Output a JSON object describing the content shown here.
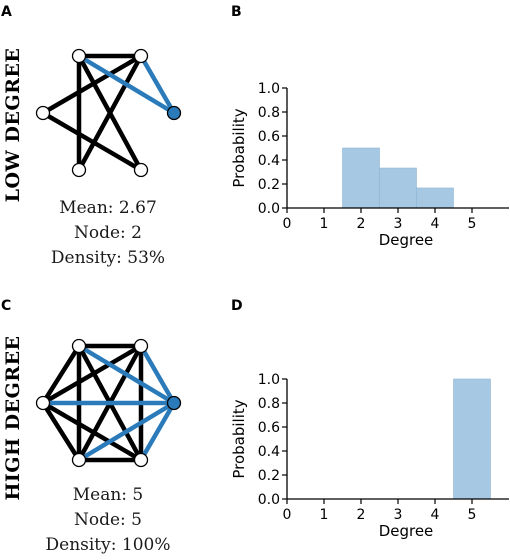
{
  "colors": {
    "edge": "#000000",
    "highlight": "#2b7bba",
    "bar": "#a6c8e3",
    "bar_edge": "#8fb6d6",
    "node_fill": "#ffffff",
    "node_highlight": "#2b7bba",
    "node_text": "#2b7bba"
  },
  "panels": [
    {
      "letter": "A",
      "side_label": "LOW DEGREE",
      "stats": {
        "mean_label": "Mean:",
        "mean_value": "2.67",
        "node_label": "Node:",
        "node_value": "2",
        "density_label": "Density:",
        "density_value": "53%"
      }
    },
    {
      "letter": "B"
    },
    {
      "letter": "C",
      "side_label": "HIGH DEGREE",
      "stats": {
        "mean_label": "Mean:",
        "mean_value": "5",
        "node_label": "Node:",
        "node_value": "5",
        "density_label": "Density:",
        "density_value": "100%"
      }
    },
    {
      "letter": "D"
    }
  ],
  "chart_data": [
    {
      "type": "bar",
      "xlabel": "Degree",
      "ylabel": "Probability",
      "xlim": [
        0,
        6
      ],
      "ylim": [
        0,
        1.0
      ],
      "xticks": [
        "0",
        "1",
        "2",
        "3",
        "4",
        "5"
      ],
      "yticks": [
        "0.0",
        "0.2",
        "0.4",
        "0.6",
        "0.8",
        "1.0"
      ],
      "categories": [
        2,
        3,
        4
      ],
      "values": [
        0.5,
        0.333,
        0.167
      ]
    },
    {
      "type": "bar",
      "xlabel": "Degree",
      "ylabel": "Probability",
      "xlim": [
        0,
        6
      ],
      "ylim": [
        0,
        1.0
      ],
      "xticks": [
        "0",
        "1",
        "2",
        "3",
        "4",
        "5"
      ],
      "yticks": [
        "0.0",
        "0.2",
        "0.4",
        "0.6",
        "0.8",
        "1.0"
      ],
      "categories": [
        5
      ],
      "values": [
        1.0
      ]
    }
  ]
}
